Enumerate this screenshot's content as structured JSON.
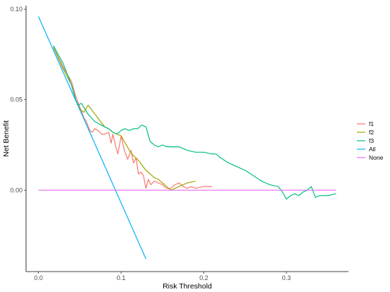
{
  "chart_data": {
    "type": "line",
    "title": "",
    "xlabel": "Risk Threshold",
    "ylabel": "Net Benefit",
    "xlim": [
      -0.015,
      0.375
    ],
    "ylim": [
      -0.045,
      0.102
    ],
    "x_ticks": [
      0.0,
      0.1,
      0.2,
      0.3
    ],
    "x_tick_labels": [
      "0.0",
      "0.1",
      "0.2",
      "0.3"
    ],
    "y_ticks": [
      0.0,
      0.05,
      0.1
    ],
    "y_tick_labels": [
      "0.00",
      "0.05",
      "0.10"
    ],
    "grid": false,
    "legend_position": "right",
    "series": [
      {
        "name": "f1",
        "color": "#F8766D",
        "x": [
          0.018,
          0.03,
          0.04,
          0.045,
          0.05,
          0.055,
          0.058,
          0.062,
          0.065,
          0.068,
          0.072,
          0.076,
          0.08,
          0.085,
          0.088,
          0.09,
          0.093,
          0.096,
          0.1,
          0.104,
          0.108,
          0.112,
          0.115,
          0.118,
          0.121,
          0.124,
          0.127,
          0.13,
          0.133,
          0.136,
          0.14,
          0.145,
          0.15,
          0.155,
          0.16,
          0.165,
          0.17,
          0.175,
          0.18,
          0.185,
          0.19,
          0.2,
          0.21
        ],
        "y": [
          0.079,
          0.068,
          0.06,
          0.052,
          0.046,
          0.04,
          0.038,
          0.033,
          0.032,
          0.034,
          0.033,
          0.031,
          0.031,
          0.032,
          0.026,
          0.031,
          0.025,
          0.02,
          0.03,
          0.022,
          0.017,
          0.022,
          0.015,
          0.018,
          0.009,
          0.01,
          0.008,
          0.001,
          0.006,
          0.003,
          0.005,
          0.004,
          0.003,
          0.001,
          0.001,
          0.003,
          0.004,
          0.002,
          0.001,
          0.002,
          0.001,
          0.002,
          0.002
        ]
      },
      {
        "name": "f2",
        "color": "#A3A500",
        "x": [
          0.018,
          0.03,
          0.04,
          0.045,
          0.05,
          0.055,
          0.06,
          0.065,
          0.07,
          0.075,
          0.08,
          0.085,
          0.09,
          0.095,
          0.1,
          0.105,
          0.11,
          0.115,
          0.12,
          0.125,
          0.13,
          0.135,
          0.14,
          0.145,
          0.15,
          0.155,
          0.16,
          0.165,
          0.17,
          0.175,
          0.18,
          0.19
        ],
        "y": [
          0.079,
          0.067,
          0.058,
          0.05,
          0.045,
          0.043,
          0.047,
          0.044,
          0.041,
          0.038,
          0.035,
          0.034,
          0.032,
          0.031,
          0.03,
          0.026,
          0.022,
          0.019,
          0.017,
          0.014,
          0.011,
          0.009,
          0.007,
          0.006,
          0.004,
          0.002,
          0.0,
          0.001,
          0.002,
          0.003,
          0.004,
          0.005
        ]
      },
      {
        "name": "f3",
        "color": "#00BF7D",
        "x": [
          0.018,
          0.025,
          0.03,
          0.035,
          0.04,
          0.045,
          0.048,
          0.052,
          0.056,
          0.06,
          0.064,
          0.068,
          0.072,
          0.076,
          0.08,
          0.085,
          0.09,
          0.095,
          0.1,
          0.105,
          0.11,
          0.115,
          0.12,
          0.125,
          0.13,
          0.135,
          0.14,
          0.145,
          0.15,
          0.155,
          0.16,
          0.17,
          0.18,
          0.19,
          0.2,
          0.21,
          0.215,
          0.22,
          0.23,
          0.24,
          0.25,
          0.26,
          0.27,
          0.28,
          0.29,
          0.295,
          0.3,
          0.305,
          0.31,
          0.315,
          0.32,
          0.325,
          0.33,
          0.335,
          0.34,
          0.35,
          0.36
        ],
        "y": [
          0.08,
          0.074,
          0.07,
          0.064,
          0.058,
          0.05,
          0.047,
          0.048,
          0.045,
          0.042,
          0.04,
          0.038,
          0.037,
          0.036,
          0.035,
          0.034,
          0.032,
          0.031,
          0.033,
          0.034,
          0.033,
          0.034,
          0.034,
          0.036,
          0.035,
          0.027,
          0.025,
          0.024,
          0.025,
          0.024,
          0.024,
          0.024,
          0.022,
          0.021,
          0.021,
          0.02,
          0.02,
          0.018,
          0.015,
          0.013,
          0.011,
          0.008,
          0.005,
          0.003,
          0.002,
          -0.001,
          -0.005,
          -0.003,
          -0.002,
          -0.003,
          -0.001,
          0.0,
          0.002,
          -0.004,
          -0.003,
          -0.003,
          -0.002
        ]
      },
      {
        "name": "All",
        "color": "#00B0F6",
        "x": [
          0.0,
          0.13
        ],
        "y": [
          0.096,
          -0.038
        ]
      },
      {
        "name": "None",
        "color": "#E76BF3",
        "x": [
          0.0,
          0.36
        ],
        "y": [
          0.0,
          0.0
        ]
      }
    ]
  }
}
